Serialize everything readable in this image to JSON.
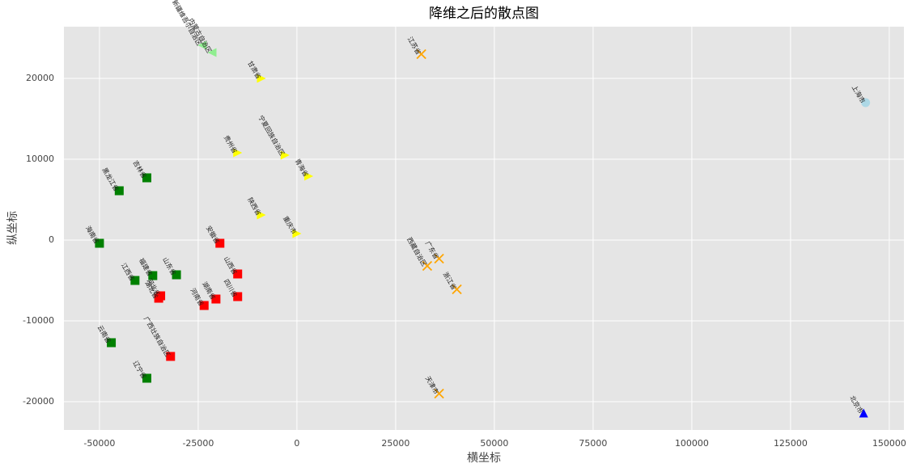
{
  "chart_data": {
    "type": "scatter",
    "title": "降维之后的散点图",
    "xlabel": "横坐标",
    "ylabel": "纵坐标",
    "xlim": [
      -59000,
      153700
    ],
    "ylim": [
      -23500,
      26400
    ],
    "xticks": [
      -50000,
      -25000,
      0,
      25000,
      50000,
      75000,
      100000,
      125000,
      150000
    ],
    "yticks": [
      -20000,
      -10000,
      0,
      10000,
      20000
    ],
    "grid": true,
    "groups": [
      {
        "color": "green",
        "marker": "square",
        "points": [
          {
            "label": "黑龙江省",
            "x": -45000,
            "y": 6100
          },
          {
            "label": "吉林省",
            "x": -38000,
            "y": 7700
          },
          {
            "label": "海南省",
            "x": -50000,
            "y": -400
          },
          {
            "label": "江西省",
            "x": -41000,
            "y": -5000
          },
          {
            "label": "福建省",
            "x": -36500,
            "y": -4400
          },
          {
            "label": "山东省",
            "x": -30500,
            "y": -4300
          },
          {
            "label": "云南省",
            "x": -47000,
            "y": -12700
          },
          {
            "label": "辽宁省",
            "x": -38000,
            "y": -17100
          }
        ]
      },
      {
        "color": "red",
        "marker": "square",
        "points": [
          {
            "label": "安徽省",
            "x": -19500,
            "y": -400
          },
          {
            "label": "山西省",
            "x": -15000,
            "y": -4200
          },
          {
            "label": "河北省",
            "x": -34500,
            "y": -6900
          },
          {
            "label": "湖北省",
            "x": -35000,
            "y": -7200
          },
          {
            "label": "湖南省",
            "x": -20500,
            "y": -7300
          },
          {
            "label": "四川省",
            "x": -15000,
            "y": -7000
          },
          {
            "label": "河南省",
            "x": -23500,
            "y": -8100
          },
          {
            "label": "广西壮族自治区",
            "x": -32000,
            "y": -14400
          }
        ]
      },
      {
        "color": "yellow",
        "marker": "triangle-right",
        "points": [
          {
            "label": "甘肃省",
            "x": -9000,
            "y": 20000
          },
          {
            "label": "贵州省",
            "x": -15000,
            "y": 10800
          },
          {
            "label": "宁夏回族自治区",
            "x": -3000,
            "y": 10500
          },
          {
            "label": "青海省",
            "x": 3000,
            "y": 7900
          },
          {
            "label": "陕西省",
            "x": -9000,
            "y": 3100
          },
          {
            "label": "重庆市",
            "x": 0,
            "y": 800
          }
        ]
      },
      {
        "color": "orange",
        "marker": "x",
        "points": [
          {
            "label": "江苏省",
            "x": 31500,
            "y": 23000
          },
          {
            "label": "广东省",
            "x": 36000,
            "y": -2300
          },
          {
            "label": "西藏自治区",
            "x": 33000,
            "y": -3200
          },
          {
            "label": "浙江省",
            "x": 40500,
            "y": -6100
          },
          {
            "label": "天津市",
            "x": 36000,
            "y": -19000
          }
        ]
      },
      {
        "color": "lightgreen",
        "marker": "triangle-left",
        "points": [
          {
            "label": "新疆维吾尔自治区",
            "x": -24000,
            "y": 24100
          },
          {
            "label": "内蒙古自治区",
            "x": -21500,
            "y": 23200
          }
        ]
      },
      {
        "color": "lightblue",
        "marker": "circle",
        "points": [
          {
            "label": "上海市",
            "x": 144000,
            "y": 17000
          }
        ]
      },
      {
        "color": "blue",
        "marker": "triangle-up",
        "points": [
          {
            "label": "北京市",
            "x": 143500,
            "y": -21400
          }
        ]
      }
    ]
  }
}
